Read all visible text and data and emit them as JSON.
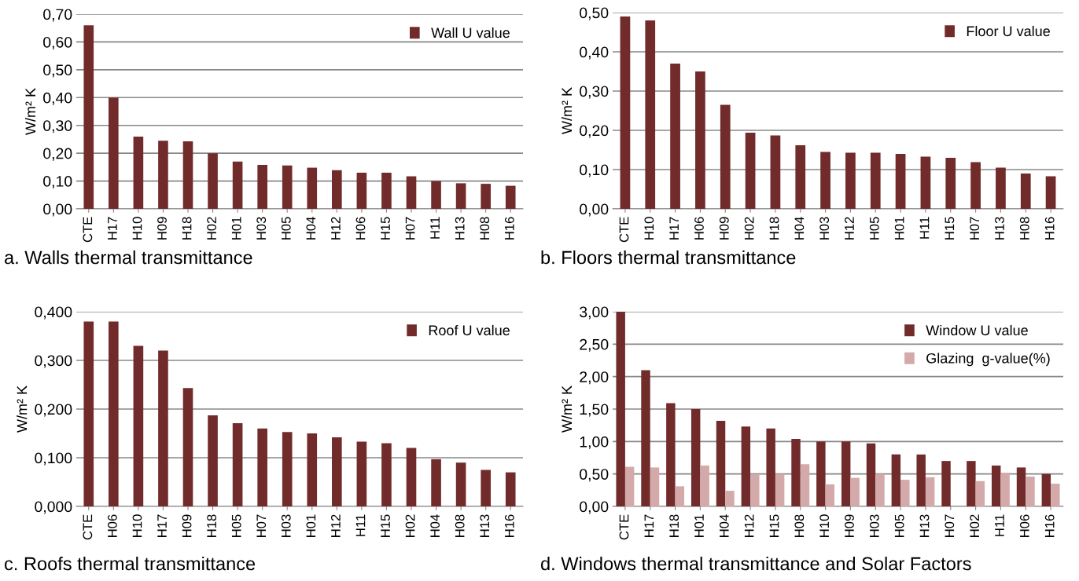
{
  "chart_data": [
    {
      "type": "bar",
      "title": "a. Walls thermal transmittance",
      "ylabel": "W/m² K",
      "categories": [
        "CTE",
        "H17",
        "H10",
        "H09",
        "H18",
        "H02",
        "H01",
        "H03",
        "H05",
        "H04",
        "H12",
        "H06",
        "H15",
        "H07",
        "H11",
        "H13",
        "H08",
        "H16"
      ],
      "series": [
        {
          "name": "Wall U value",
          "color": "#722b2b",
          "values": [
            0.66,
            0.4,
            0.26,
            0.245,
            0.243,
            0.2,
            0.17,
            0.158,
            0.156,
            0.148,
            0.139,
            0.13,
            0.13,
            0.117,
            0.1,
            0.092,
            0.09,
            0.083
          ]
        }
      ],
      "ylim": [
        0,
        0.7
      ],
      "yticks": [
        {
          "value": 0,
          "label": "0,00"
        },
        {
          "value": 0.1,
          "label": "0,10"
        },
        {
          "value": 0.2,
          "label": "0,20"
        },
        {
          "value": 0.3,
          "label": "0,30"
        },
        {
          "value": 0.4,
          "label": "0,40"
        },
        {
          "value": 0.5,
          "label": "0,50"
        },
        {
          "value": 0.6,
          "label": "0,60"
        },
        {
          "value": 0.7,
          "label": "0,70"
        }
      ],
      "grid": "y",
      "legend": "top right"
    },
    {
      "type": "bar",
      "title": "b. Floors thermal transmittance",
      "ylabel": "W/m² K",
      "categories": [
        "CTE",
        "H10",
        "H17",
        "H06",
        "H09",
        "H02",
        "H18",
        "H04",
        "H03",
        "H12",
        "H05",
        "H01",
        "H11",
        "H15",
        "H07",
        "H13",
        "H08",
        "H16"
      ],
      "series": [
        {
          "name": "Floor U value",
          "color": "#722b2b",
          "values": [
            0.49,
            0.48,
            0.37,
            0.35,
            0.265,
            0.194,
            0.187,
            0.162,
            0.145,
            0.143,
            0.143,
            0.14,
            0.133,
            0.13,
            0.119,
            0.105,
            0.09,
            0.083
          ]
        }
      ],
      "ylim": [
        0,
        0.5
      ],
      "yticks": [
        {
          "value": 0,
          "label": "0,00"
        },
        {
          "value": 0.1,
          "label": "0,10"
        },
        {
          "value": 0.2,
          "label": "0,20"
        },
        {
          "value": 0.3,
          "label": "0,30"
        },
        {
          "value": 0.4,
          "label": "0,40"
        },
        {
          "value": 0.5,
          "label": "0,50"
        }
      ],
      "grid": "y",
      "legend": "top right"
    },
    {
      "type": "bar",
      "title": "c. Roofs thermal transmittance",
      "ylabel": "W/m² K",
      "categories": [
        "CTE",
        "H06",
        "H10",
        "H17",
        "H09",
        "H18",
        "H05",
        "H07",
        "H03",
        "H01",
        "H12",
        "H11",
        "H15",
        "H02",
        "H04",
        "H08",
        "H13",
        "H16"
      ],
      "series": [
        {
          "name": "Roof U value",
          "color": "#722b2b",
          "values": [
            0.38,
            0.38,
            0.33,
            0.32,
            0.243,
            0.187,
            0.171,
            0.16,
            0.153,
            0.15,
            0.142,
            0.133,
            0.13,
            0.12,
            0.097,
            0.09,
            0.075,
            0.07
          ]
        }
      ],
      "ylim": [
        0,
        0.4
      ],
      "yticks": [
        {
          "value": 0,
          "label": "0,000"
        },
        {
          "value": 0.1,
          "label": "0,100"
        },
        {
          "value": 0.2,
          "label": "0,200"
        },
        {
          "value": 0.3,
          "label": "0,300"
        },
        {
          "value": 0.4,
          "label": "0,400"
        }
      ],
      "grid": "y",
      "legend": "top right"
    },
    {
      "type": "bar",
      "title": "d. Windows thermal transmittance and Solar Factors",
      "ylabel": "W/m² K",
      "categories": [
        "CTE",
        "H17",
        "H18",
        "H01",
        "H04",
        "H12",
        "H15",
        "H08",
        "H10",
        "H09",
        "H03",
        "H05",
        "H13",
        "H07",
        "H02",
        "H11",
        "H06",
        "H16"
      ],
      "series": [
        {
          "name": "Window U value",
          "color": "#722b2b",
          "values": [
            3.0,
            2.1,
            1.59,
            1.5,
            1.32,
            1.23,
            1.2,
            1.04,
            1.0,
            1.0,
            0.97,
            0.8,
            0.8,
            0.7,
            0.7,
            0.63,
            0.6,
            0.5
          ]
        },
        {
          "name": "Glazing  g-value(%)",
          "color": "#d3a9a9",
          "values": [
            0.61,
            0.6,
            0.31,
            0.63,
            0.24,
            0.49,
            0.5,
            0.65,
            0.34,
            0.44,
            0.5,
            0.41,
            0.45,
            null,
            0.39,
            0.52,
            0.46,
            0.35
          ]
        }
      ],
      "ylim": [
        0,
        3.0
      ],
      "yticks": [
        {
          "value": 0,
          "label": "0,00"
        },
        {
          "value": 0.5,
          "label": "0,50"
        },
        {
          "value": 1.0,
          "label": "1,00"
        },
        {
          "value": 1.5,
          "label": "1,50"
        },
        {
          "value": 2.0,
          "label": "2,00"
        },
        {
          "value": 2.5,
          "label": "2,50"
        },
        {
          "value": 3.0,
          "label": "3,00"
        }
      ],
      "grid": "y",
      "legend": "top right"
    }
  ]
}
